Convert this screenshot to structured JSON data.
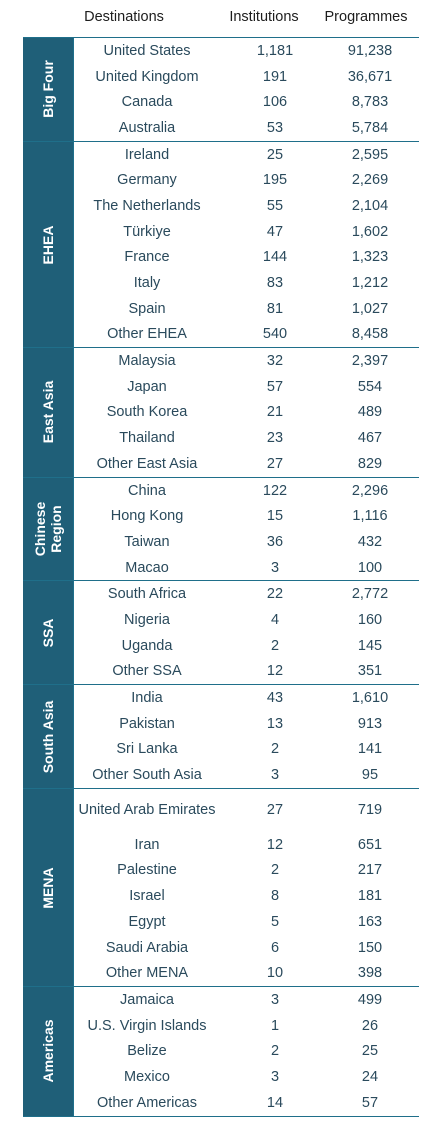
{
  "header": {
    "destinations": "Destinations",
    "institutions": "Institutions",
    "programmes": "Programmes"
  },
  "groups": [
    {
      "label": "Big Four",
      "rows": [
        {
          "destination": "United States",
          "institutions": "1,181",
          "programmes": "91,238"
        },
        {
          "destination": "United Kingdom",
          "institutions": "191",
          "programmes": "36,671"
        },
        {
          "destination": "Canada",
          "institutions": "106",
          "programmes": "8,783"
        },
        {
          "destination": "Australia",
          "institutions": "53",
          "programmes": "5,784"
        }
      ]
    },
    {
      "label": "EHEA",
      "rows": [
        {
          "destination": "Ireland",
          "institutions": "25",
          "programmes": "2,595"
        },
        {
          "destination": "Germany",
          "institutions": "195",
          "programmes": "2,269"
        },
        {
          "destination": "The Netherlands",
          "institutions": "55",
          "programmes": "2,104"
        },
        {
          "destination": "Türkiye",
          "institutions": "47",
          "programmes": "1,602"
        },
        {
          "destination": "France",
          "institutions": "144",
          "programmes": "1,323"
        },
        {
          "destination": "Italy",
          "institutions": "83",
          "programmes": "1,212"
        },
        {
          "destination": "Spain",
          "institutions": "81",
          "programmes": "1,027"
        },
        {
          "destination": "Other EHEA",
          "institutions": "540",
          "programmes": "8,458"
        }
      ]
    },
    {
      "label": "East Asia",
      "rows": [
        {
          "destination": "Malaysia",
          "institutions": "32",
          "programmes": "2,397"
        },
        {
          "destination": "Japan",
          "institutions": "57",
          "programmes": "554"
        },
        {
          "destination": "South Korea",
          "institutions": "21",
          "programmes": "489"
        },
        {
          "destination": "Thailand",
          "institutions": "23",
          "programmes": "467"
        },
        {
          "destination": "Other East Asia",
          "institutions": "27",
          "programmes": "829"
        }
      ]
    },
    {
      "label": "Chinese Region",
      "rows": [
        {
          "destination": "China",
          "institutions": "122",
          "programmes": "2,296"
        },
        {
          "destination": "Hong Kong",
          "institutions": "15",
          "programmes": "1,116"
        },
        {
          "destination": "Taiwan",
          "institutions": "36",
          "programmes": "432"
        },
        {
          "destination": "Macao",
          "institutions": "3",
          "programmes": "100"
        }
      ]
    },
    {
      "label": "SSA",
      "rows": [
        {
          "destination": "South Africa",
          "institutions": "22",
          "programmes": "2,772"
        },
        {
          "destination": "Nigeria",
          "institutions": "4",
          "programmes": "160"
        },
        {
          "destination": "Uganda",
          "institutions": "2",
          "programmes": "145"
        },
        {
          "destination": "Other SSA",
          "institutions": "12",
          "programmes": "351"
        }
      ]
    },
    {
      "label": "South Asia",
      "rows": [
        {
          "destination": "India",
          "institutions": "43",
          "programmes": "1,610"
        },
        {
          "destination": "Pakistan",
          "institutions": "13",
          "programmes": "913"
        },
        {
          "destination": "Sri Lanka",
          "institutions": "2",
          "programmes": "141"
        },
        {
          "destination": "Other South Asia",
          "institutions": "3",
          "programmes": "95"
        }
      ]
    },
    {
      "label": "MENA",
      "rows": [
        {
          "destination": "United Arab Emirates",
          "institutions": "27",
          "programmes": "719"
        },
        {
          "destination": "Iran",
          "institutions": "12",
          "programmes": "651"
        },
        {
          "destination": "Palestine",
          "institutions": "2",
          "programmes": "217"
        },
        {
          "destination": "Israel",
          "institutions": "8",
          "programmes": "181"
        },
        {
          "destination": "Egypt",
          "institutions": "5",
          "programmes": "163"
        },
        {
          "destination": "Saudi Arabia",
          "institutions": "6",
          "programmes": "150"
        },
        {
          "destination": "Other MENA",
          "institutions": "10",
          "programmes": "398"
        }
      ]
    },
    {
      "label": "Americas",
      "rows": [
        {
          "destination": "Jamaica",
          "institutions": "3",
          "programmes": "499"
        },
        {
          "destination": "U.S. Virgin Islands",
          "institutions": "1",
          "programmes": "26"
        },
        {
          "destination": "Belize",
          "institutions": "2",
          "programmes": "25"
        },
        {
          "destination": "Mexico",
          "institutions": "3",
          "programmes": "24"
        },
        {
          "destination": "Other Americas",
          "institutions": "14",
          "programmes": "57"
        }
      ]
    }
  ]
}
